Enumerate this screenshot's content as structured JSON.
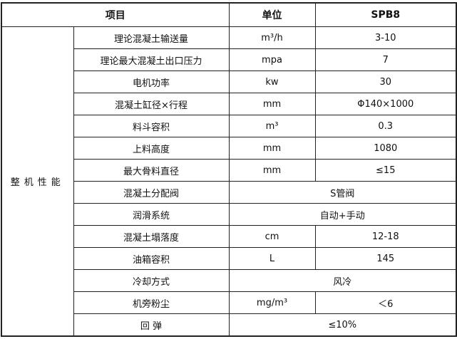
{
  "header": {
    "item": "项目",
    "unit": "单位",
    "model": "SPB8"
  },
  "group_label": "整机性能",
  "rows": [
    {
      "item": "理论混凝土输送量",
      "unit": "m³/h",
      "value": "3-10"
    },
    {
      "item": "理论最大混凝土出口压力",
      "unit": "mpa",
      "value": "7"
    },
    {
      "item": "电机功率",
      "unit": "kw",
      "value": "30"
    },
    {
      "item": "混凝土缸径×行程",
      "unit": "mm",
      "value": "Φ140×1000"
    },
    {
      "item": "料斗容积",
      "unit": "m³",
      "value": "0.3"
    },
    {
      "item": "上料高度",
      "unit": "mm",
      "value": "1080"
    },
    {
      "item": "最大骨料直径",
      "unit": "mm",
      "value": "≤15"
    },
    {
      "item": "混凝土分配阀",
      "merged": "S管阀"
    },
    {
      "item": "润滑系统",
      "merged": "自动+手动"
    },
    {
      "item": "混凝土塌落度",
      "unit": "cm",
      "value": "12-18"
    },
    {
      "item": "油箱容积",
      "unit": "L",
      "value": "145"
    },
    {
      "item": "冷却方式",
      "merged": "风冷"
    },
    {
      "item": "机旁粉尘",
      "unit": "mg/m³",
      "value": "＜6"
    },
    {
      "item": "回 弹",
      "merged": "≤10%"
    }
  ]
}
